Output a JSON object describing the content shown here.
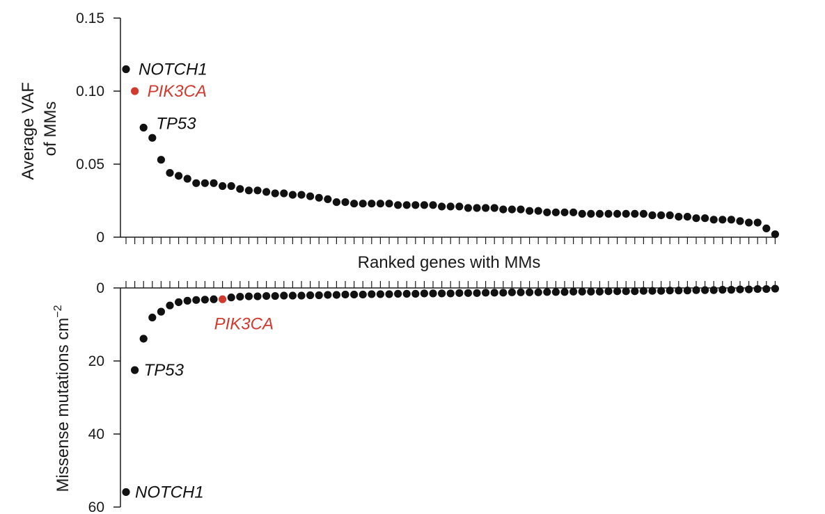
{
  "colors": {
    "default": "#111111",
    "highlight": "#d13b2f"
  },
  "chart_data": [
    {
      "type": "scatter",
      "panel": "top",
      "ylabel_lines": [
        "Average VAF",
        "of MMs"
      ],
      "xlabel": "Ranked genes with MMs",
      "ylim": [
        0,
        0.15
      ],
      "yticks": [
        0,
        0.05,
        0.1,
        0.15
      ],
      "ytick_labels": [
        "0",
        "0.05",
        "0.10",
        "0.15"
      ],
      "x": [
        1,
        2,
        3,
        4,
        5,
        6,
        7,
        8,
        9,
        10,
        11,
        12,
        13,
        14,
        15,
        16,
        17,
        18,
        19,
        20,
        21,
        22,
        23,
        24,
        25,
        26,
        27,
        28,
        29,
        30,
        31,
        32,
        33,
        34,
        35,
        36,
        37,
        38,
        39,
        40,
        41,
        42,
        43,
        44,
        45,
        46,
        47,
        48,
        49,
        50,
        51,
        52,
        53,
        54,
        55,
        56,
        57,
        58,
        59,
        60,
        61,
        62,
        63,
        64,
        65,
        66,
        67,
        68,
        69,
        70,
        71,
        72,
        73,
        74,
        75
      ],
      "y": [
        0.115,
        0.1,
        0.075,
        0.068,
        0.053,
        0.044,
        0.042,
        0.04,
        0.037,
        0.037,
        0.037,
        0.035,
        0.035,
        0.033,
        0.032,
        0.032,
        0.031,
        0.03,
        0.03,
        0.029,
        0.029,
        0.028,
        0.027,
        0.026,
        0.024,
        0.024,
        0.023,
        0.023,
        0.023,
        0.023,
        0.023,
        0.022,
        0.022,
        0.022,
        0.022,
        0.022,
        0.021,
        0.021,
        0.021,
        0.02,
        0.02,
        0.02,
        0.02,
        0.019,
        0.019,
        0.019,
        0.018,
        0.018,
        0.017,
        0.017,
        0.017,
        0.017,
        0.016,
        0.016,
        0.016,
        0.016,
        0.016,
        0.016,
        0.016,
        0.016,
        0.015,
        0.015,
        0.015,
        0.014,
        0.014,
        0.013,
        0.013,
        0.012,
        0.012,
        0.012,
        0.011,
        0.01,
        0.01,
        0.006,
        0.002
      ],
      "highlight_index": 1,
      "annotations": [
        {
          "index": 0,
          "text": "NOTCH1",
          "highlight": false
        },
        {
          "index": 1,
          "text": "PIK3CA",
          "highlight": true
        },
        {
          "index": 2,
          "text": "TP53",
          "highlight": false
        }
      ]
    },
    {
      "type": "scatter",
      "panel": "bottom",
      "ylabel": "Missense mutations cm",
      "ylabel_superscript": "−2",
      "ylim": [
        0,
        60
      ],
      "y_inverted": true,
      "yticks": [
        0,
        20,
        40,
        60
      ],
      "ytick_labels": [
        "0",
        "20",
        "40",
        "60"
      ],
      "x": [
        1,
        2,
        3,
        4,
        5,
        6,
        7,
        8,
        9,
        10,
        11,
        12,
        13,
        14,
        15,
        16,
        17,
        18,
        19,
        20,
        21,
        22,
        23,
        24,
        25,
        26,
        27,
        28,
        29,
        30,
        31,
        32,
        33,
        34,
        35,
        36,
        37,
        38,
        39,
        40,
        41,
        42,
        43,
        44,
        45,
        46,
        47,
        48,
        49,
        50,
        51,
        52,
        53,
        54,
        55,
        56,
        57,
        58,
        59,
        60,
        61,
        62,
        63,
        64,
        65,
        66,
        67,
        68,
        69,
        70,
        71,
        72,
        73,
        74,
        75
      ],
      "y": [
        55.9,
        22.5,
        13.9,
        8.1,
        6.5,
        4.8,
        3.9,
        3.5,
        3.3,
        3.2,
        3.1,
        3.1,
        2.6,
        2.4,
        2.3,
        2.3,
        2.2,
        2.2,
        2.1,
        2.1,
        2.1,
        2.0,
        2.0,
        1.9,
        1.9,
        1.8,
        1.8,
        1.8,
        1.7,
        1.7,
        1.7,
        1.6,
        1.6,
        1.6,
        1.5,
        1.5,
        1.5,
        1.5,
        1.4,
        1.4,
        1.4,
        1.3,
        1.3,
        1.3,
        1.2,
        1.2,
        1.2,
        1.2,
        1.1,
        1.1,
        1.1,
        1.0,
        1.0,
        1.0,
        1.0,
        0.9,
        0.9,
        0.9,
        0.9,
        0.8,
        0.8,
        0.8,
        0.7,
        0.7,
        0.7,
        0.6,
        0.6,
        0.6,
        0.5,
        0.5,
        0.4,
        0.4,
        0.3,
        0.3,
        0.2
      ],
      "highlight_index": 11,
      "annotations": [
        {
          "index": 11,
          "text": "PIK3CA",
          "highlight": true
        },
        {
          "index": 1,
          "text": "TP53",
          "highlight": false
        },
        {
          "index": 0,
          "text": "NOTCH1",
          "highlight": false
        }
      ]
    }
  ]
}
